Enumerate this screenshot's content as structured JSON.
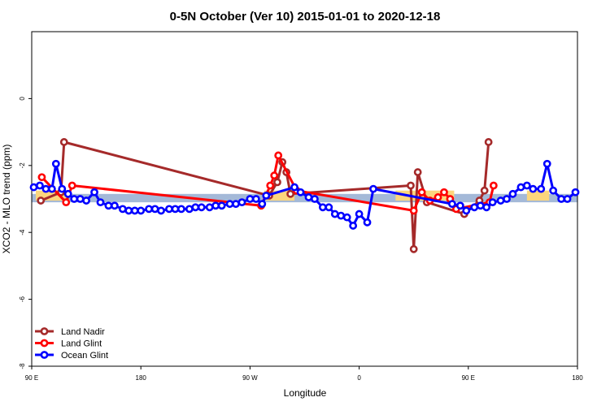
{
  "chart_data": {
    "type": "line",
    "title": "0-5N October (Ver 10)   2015-01-01 to 2020-12-18",
    "xlabel": "Longitude",
    "ylabel": "XCO2 - MLO trend (ppm)",
    "xlim": [
      -90,
      180
    ],
    "ylim": [
      -8,
      2
    ],
    "x_ticks": [
      {
        "value": -90,
        "label": "90 E"
      },
      {
        "value": -36,
        "label": "180"
      },
      {
        "value": 18,
        "label": "90 W"
      },
      {
        "value": 72,
        "label": "0"
      },
      {
        "value": 126,
        "label": "90 E"
      },
      {
        "value": 180,
        "label": "180"
      }
    ],
    "y_ticks": [
      0,
      -2,
      -4,
      -6,
      -8
    ],
    "y_tick_labels": [
      "0",
      "-2",
      "-4",
      "-6",
      "-8"
    ],
    "grid": false,
    "legend_position": "bottom-left",
    "bands": {
      "blue": {
        "y": [
          -3.1,
          -2.85
        ],
        "color": "#a4b9d8"
      },
      "orange": [
        {
          "x": [
            -88,
            -73
          ],
          "y": [
            -3.05,
            -2.75
          ]
        },
        {
          "x": [
            25,
            40
          ],
          "y": [
            -3.05,
            -2.75
          ]
        },
        {
          "x": [
            90,
            119
          ],
          "y": [
            -3.05,
            -2.75
          ]
        },
        {
          "x": [
            155,
            166
          ],
          "y": [
            -3.05,
            -2.75
          ]
        }
      ],
      "orange_color": "#fcd67d"
    },
    "series": [
      {
        "name": "Land Nadir",
        "color": "#a52a2a",
        "x": [
          -85.5,
          -75.5,
          -74,
          27.5,
          31.5,
          34,
          36,
          38,
          97.5,
          99,
          101,
          105.5,
          124,
          131.5,
          134,
          136
        ],
        "y": [
          -3.05,
          -2.8,
          -1.3,
          -2.9,
          -2.5,
          -1.9,
          -2.2,
          -2.85,
          -2.6,
          -4.5,
          -2.2,
          -3.1,
          -3.45,
          -3.05,
          -2.75,
          -1.3
        ]
      },
      {
        "name": "Land Glint",
        "color": "#ff0000",
        "x": [
          -85,
          -73,
          -70,
          23.5,
          28,
          30,
          32,
          41,
          99,
          103,
          107,
          111,
          114,
          117,
          120,
          136.5,
          138.5
        ],
        "y": [
          -2.35,
          -3.1,
          -2.6,
          -3.2,
          -2.6,
          -2.3,
          -1.7,
          -2.75,
          -3.35,
          -2.8,
          -3.05,
          -2.95,
          -2.8,
          -3.0,
          -3.3,
          -3.1,
          -2.6
        ]
      },
      {
        "name": "Ocean Glint",
        "color": "#0000ff",
        "x": [
          -89,
          -86,
          -83,
          -80,
          -78,
          -75,
          -72,
          -69,
          -66,
          -63,
          -59,
          -56,
          -52,
          -49,
          -45,
          -42,
          -39,
          -36,
          -32,
          -29,
          -26,
          -22,
          -19,
          -16,
          -12,
          -9,
          -6,
          -2,
          1,
          4,
          8,
          11,
          14,
          18,
          21,
          24,
          26,
          40,
          43,
          47,
          50,
          54,
          57,
          60,
          63,
          66,
          69,
          72,
          76,
          79,
          118,
          122,
          125,
          129,
          132,
          135,
          138,
          142,
          145,
          148,
          152,
          155,
          158,
          162,
          165,
          168,
          172,
          175,
          179
        ],
        "y": [
          -2.65,
          -2.6,
          -2.7,
          -2.7,
          -1.95,
          -2.7,
          -2.85,
          -3.0,
          -3.0,
          -3.05,
          -2.8,
          -3.1,
          -3.2,
          -3.2,
          -3.3,
          -3.35,
          -3.35,
          -3.35,
          -3.3,
          -3.3,
          -3.35,
          -3.3,
          -3.3,
          -3.3,
          -3.3,
          -3.25,
          -3.25,
          -3.25,
          -3.2,
          -3.2,
          -3.15,
          -3.15,
          -3.1,
          -3.0,
          -3.0,
          -3.15,
          -2.9,
          -2.65,
          -2.8,
          -2.95,
          -3.0,
          -3.25,
          -3.25,
          -3.45,
          -3.5,
          -3.55,
          -3.8,
          -3.45,
          -3.7,
          -2.7,
          -3.15,
          -3.2,
          -3.35,
          -3.25,
          -3.2,
          -3.25,
          -3.1,
          -3.05,
          -3.0,
          -2.85,
          -2.65,
          -2.6,
          -2.7,
          -2.7,
          -1.95,
          -2.75,
          -3.0,
          -3.0,
          -2.8
        ]
      }
    ]
  }
}
